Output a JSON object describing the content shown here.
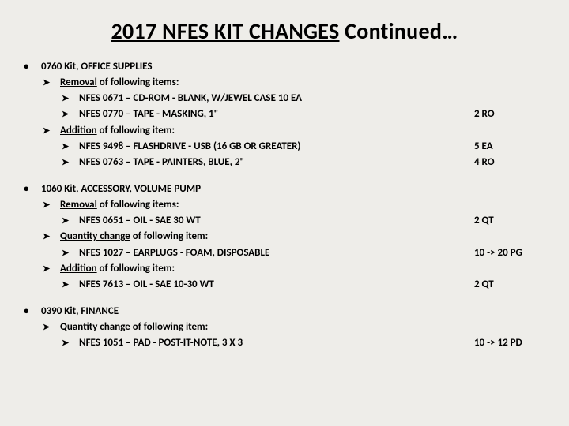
{
  "title_prefix": "2017 NFES KIT CHANGES",
  "title_suffix": " Continued…",
  "sections": [
    {
      "header": "0760 Kit, OFFICE SUPPLIES",
      "groups": [
        {
          "label_u": "Removal",
          "label_rest": " of following items:",
          "items": [
            {
              "text": "NFES 0671 – CD-ROM - BLANK, W/JEWEL CASE 10 EA",
              "qty": ""
            },
            {
              "text": "NFES 0770 – TAPE - MASKING, 1\"",
              "qty": "2 RO"
            }
          ]
        },
        {
          "label_u": "Addition",
          "label_rest": " of following item:",
          "items": [
            {
              "text": "NFES 9498 – FLASHDRIVE - USB (16 GB OR GREATER)",
              "qty": "5 EA"
            },
            {
              "text": "NFES 0763 – TAPE - PAINTERS, BLUE, 2\"",
              "qty": "4 RO"
            }
          ]
        }
      ]
    },
    {
      "header": "1060 Kit, ACCESSORY, VOLUME PUMP",
      "groups": [
        {
          "label_u": "Removal",
          "label_rest": " of following items:",
          "items": [
            {
              "text": "NFES 0651 – OIL - SAE 30 WT",
              "qty": "2 QT"
            }
          ]
        },
        {
          "label_u": "Quantity change",
          "label_rest": " of following item:",
          "items": [
            {
              "text": "NFES 1027 – EARPLUGS - FOAM, DISPOSABLE",
              "qty": "10 -> 20 PG"
            }
          ]
        },
        {
          "label_u": "Addition",
          "label_rest": " of following item:",
          "items": [
            {
              "text": "NFES 7613 – OIL - SAE 10-30 WT",
              "qty": "2 QT"
            }
          ]
        }
      ]
    },
    {
      "header": "0390 Kit, FINANCE",
      "groups": [
        {
          "label_u": "Quantity change",
          "label_rest": " of following item:",
          "items": [
            {
              "text": "NFES 1051 – PAD - POST-IT-NOTE, 3 X 3",
              "qty": "10 -> 12 PD"
            }
          ]
        }
      ]
    }
  ]
}
